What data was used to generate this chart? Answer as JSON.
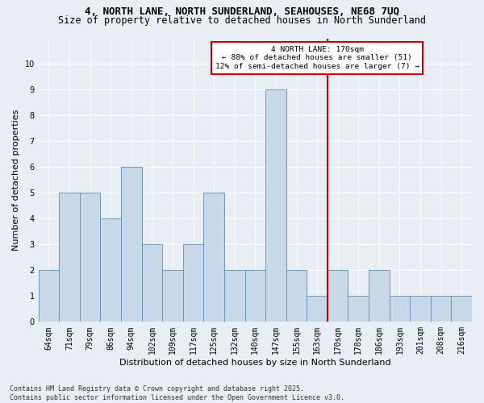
{
  "title1": "4, NORTH LANE, NORTH SUNDERLAND, SEAHOUSES, NE68 7UQ",
  "title2": "Size of property relative to detached houses in North Sunderland",
  "xlabel": "Distribution of detached houses by size in North Sunderland",
  "ylabel": "Number of detached properties",
  "categories": [
    "64sqm",
    "71sqm",
    "79sqm",
    "86sqm",
    "94sqm",
    "102sqm",
    "109sqm",
    "117sqm",
    "125sqm",
    "132sqm",
    "140sqm",
    "147sqm",
    "155sqm",
    "163sqm",
    "170sqm",
    "178sqm",
    "186sqm",
    "193sqm",
    "201sqm",
    "208sqm",
    "216sqm"
  ],
  "values": [
    2,
    5,
    5,
    4,
    6,
    3,
    2,
    3,
    5,
    2,
    2,
    9,
    2,
    1,
    2,
    1,
    2,
    1,
    1,
    1,
    1
  ],
  "bar_color": "#c8d8e8",
  "bar_edge_color": "#5b8db8",
  "highlight_line_idx": 14,
  "highlight_line_color": "#cc0000",
  "annotation_text": "4 NORTH LANE: 170sqm\n← 88% of detached houses are smaller (51)\n12% of semi-detached houses are larger (7) →",
  "annotation_box_color": "#cc0000",
  "ylim": [
    0,
    11
  ],
  "yticks": [
    0,
    1,
    2,
    3,
    4,
    5,
    6,
    7,
    8,
    9,
    10,
    11
  ],
  "background_color": "#e8eef4",
  "footer": "Contains HM Land Registry data © Crown copyright and database right 2025.\nContains public sector information licensed under the Open Government Licence v3.0.",
  "title_fontsize": 9,
  "subtitle_fontsize": 8.5,
  "axis_label_fontsize": 8,
  "tick_fontsize": 7,
  "footer_fontsize": 6
}
